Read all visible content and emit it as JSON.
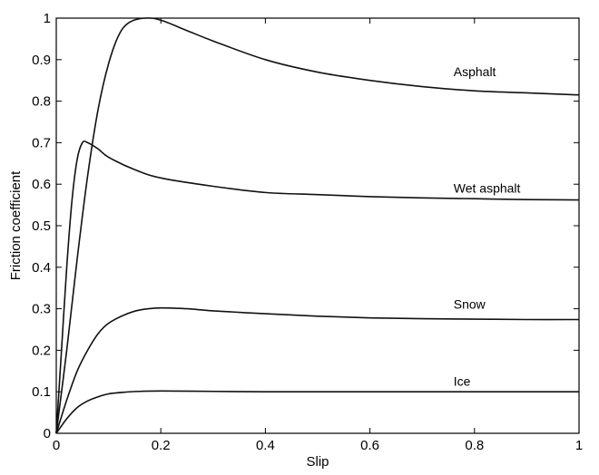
{
  "chart_data": {
    "type": "line",
    "title": "",
    "xlabel": "Slip",
    "ylabel": "Friction coefficient",
    "xlim": [
      0,
      1
    ],
    "ylim": [
      0,
      1
    ],
    "grid": false,
    "x_ticks": [
      0,
      0.2,
      0.4,
      0.6,
      0.8,
      1
    ],
    "x_tick_labels": [
      "0",
      "0.2",
      "0.4",
      "0.6",
      "0.8",
      "1"
    ],
    "y_ticks": [
      0,
      0.1,
      0.2,
      0.3,
      0.4,
      0.5,
      0.6,
      0.7,
      0.8,
      0.9,
      1
    ],
    "y_tick_labels": [
      "0",
      "0.1",
      "0.2",
      "0.3",
      "0.4",
      "0.5",
      "0.6",
      "0.7",
      "0.8",
      "0.9",
      "1"
    ],
    "series": [
      {
        "name": "Asphalt",
        "label_at": [
          0.76,
          0.86
        ],
        "points": [
          [
            0,
            0
          ],
          [
            0.02,
            0.2
          ],
          [
            0.04,
            0.42
          ],
          [
            0.06,
            0.62
          ],
          [
            0.08,
            0.78
          ],
          [
            0.1,
            0.89
          ],
          [
            0.12,
            0.96
          ],
          [
            0.14,
            0.99
          ],
          [
            0.17,
            1.0
          ],
          [
            0.2,
            0.995
          ],
          [
            0.25,
            0.97
          ],
          [
            0.3,
            0.945
          ],
          [
            0.4,
            0.9
          ],
          [
            0.5,
            0.87
          ],
          [
            0.6,
            0.85
          ],
          [
            0.7,
            0.835
          ],
          [
            0.8,
            0.825
          ],
          [
            0.9,
            0.82
          ],
          [
            1,
            0.815
          ]
        ]
      },
      {
        "name": "Wet asphalt",
        "label_at": [
          0.76,
          0.58
        ],
        "points": [
          [
            0,
            0
          ],
          [
            0.01,
            0.2
          ],
          [
            0.02,
            0.4
          ],
          [
            0.03,
            0.56
          ],
          [
            0.04,
            0.66
          ],
          [
            0.05,
            0.7
          ],
          [
            0.06,
            0.7
          ],
          [
            0.08,
            0.685
          ],
          [
            0.1,
            0.665
          ],
          [
            0.15,
            0.635
          ],
          [
            0.2,
            0.615
          ],
          [
            0.3,
            0.595
          ],
          [
            0.4,
            0.58
          ],
          [
            0.5,
            0.575
          ],
          [
            0.6,
            0.57
          ],
          [
            0.7,
            0.567
          ],
          [
            0.8,
            0.565
          ],
          [
            0.9,
            0.563
          ],
          [
            1,
            0.562
          ]
        ]
      },
      {
        "name": "Snow",
        "label_at": [
          0.76,
          0.3
        ],
        "points": [
          [
            0,
            0
          ],
          [
            0.02,
            0.08
          ],
          [
            0.04,
            0.15
          ],
          [
            0.06,
            0.2
          ],
          [
            0.08,
            0.24
          ],
          [
            0.1,
            0.265
          ],
          [
            0.13,
            0.285
          ],
          [
            0.16,
            0.297
          ],
          [
            0.2,
            0.302
          ],
          [
            0.25,
            0.3
          ],
          [
            0.3,
            0.295
          ],
          [
            0.4,
            0.288
          ],
          [
            0.5,
            0.282
          ],
          [
            0.6,
            0.278
          ],
          [
            0.7,
            0.276
          ],
          [
            0.8,
            0.275
          ],
          [
            0.9,
            0.274
          ],
          [
            1,
            0.274
          ]
        ]
      },
      {
        "name": "Ice",
        "label_at": [
          0.76,
          0.115
        ],
        "points": [
          [
            0,
            0
          ],
          [
            0.02,
            0.035
          ],
          [
            0.04,
            0.062
          ],
          [
            0.06,
            0.078
          ],
          [
            0.08,
            0.088
          ],
          [
            0.1,
            0.095
          ],
          [
            0.13,
            0.099
          ],
          [
            0.16,
            0.101
          ],
          [
            0.2,
            0.102
          ],
          [
            0.3,
            0.101
          ],
          [
            0.4,
            0.1
          ],
          [
            0.5,
            0.1
          ],
          [
            0.6,
            0.1
          ],
          [
            0.7,
            0.1
          ],
          [
            0.8,
            0.1
          ],
          [
            0.9,
            0.1
          ],
          [
            1,
            0.1
          ]
        ]
      }
    ]
  }
}
